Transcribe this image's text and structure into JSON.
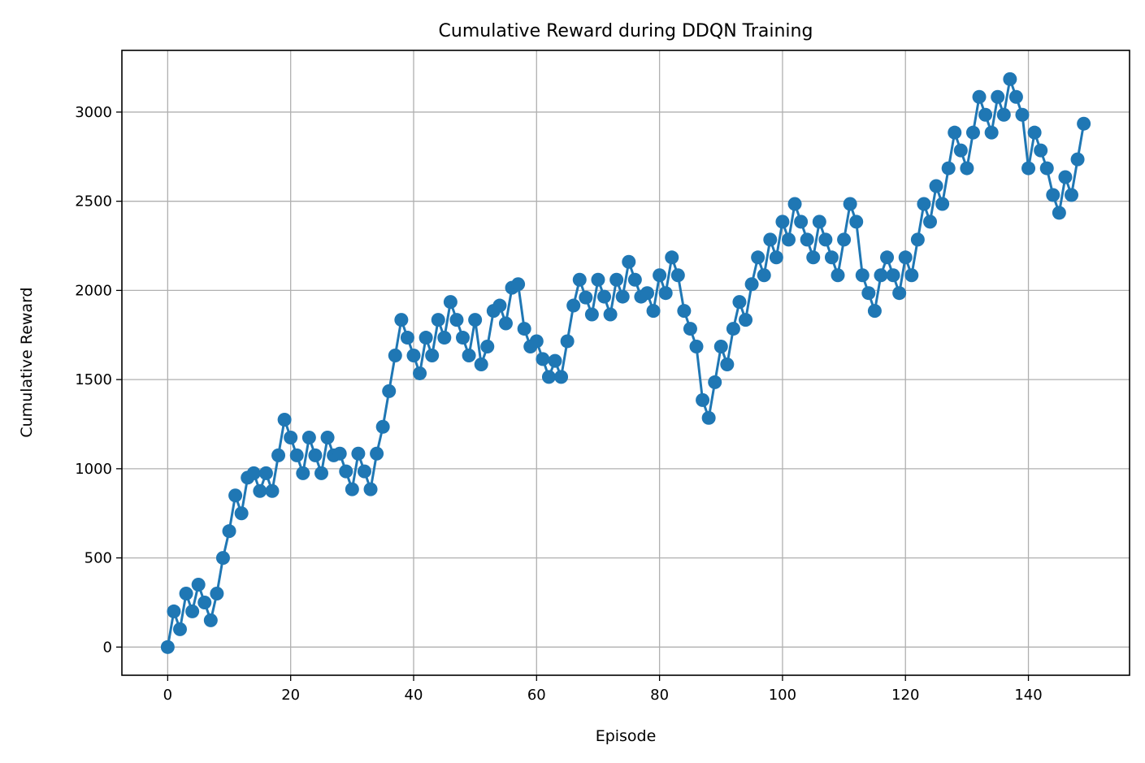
{
  "chart_data": {
    "type": "line",
    "title": "Cumulative Reward during DDQN Training",
    "xlabel": "Episode",
    "ylabel": "Cumulative Reward",
    "xlim": [
      -7.45,
      156.45
    ],
    "ylim": [
      -158,
      3346
    ],
    "xticks": [
      0,
      20,
      40,
      60,
      80,
      100,
      120,
      140
    ],
    "yticks": [
      0,
      500,
      1000,
      1500,
      2000,
      2500,
      3000
    ],
    "grid": true,
    "legend": "none",
    "marker": "circle",
    "color": "#1f77b4",
    "series": [
      {
        "values": [
          0,
          200,
          100,
          300,
          200,
          350,
          250,
          150,
          300,
          500,
          650,
          850,
          750,
          950,
          975,
          875,
          975,
          875,
          1075,
          1275,
          1175,
          1075,
          975,
          1175,
          1075,
          975,
          1175,
          1075,
          1085,
          985,
          885,
          1085,
          985,
          885,
          1085,
          1235,
          1435,
          1635,
          1835,
          1735,
          1635,
          1535,
          1735,
          1635,
          1835,
          1735,
          1935,
          1835,
          1735,
          1635,
          1835,
          1585,
          1685,
          1885,
          1915,
          1815,
          2015,
          2035,
          1785,
          1685,
          1715,
          1615,
          1515,
          1605,
          1515,
          1715,
          1915,
          2060,
          1960,
          1865,
          2060,
          1965,
          1865,
          2060,
          1965,
          2160,
          2060,
          1965,
          1985,
          1885,
          2085,
          1985,
          2185,
          2085,
          1885,
          1785,
          1685,
          1385,
          1285,
          1485,
          1685,
          1585,
          1785,
          1935,
          1835,
          2035,
          2185,
          2085,
          2285,
          2185,
          2385,
          2285,
          2485,
          2385,
          2285,
          2185,
          2385,
          2285,
          2185,
          2085,
          2285,
          2485,
          2385,
          2085,
          1985,
          1885,
          2085,
          2185,
          2085,
          1985,
          2185,
          2085,
          2285,
          2485,
          2385,
          2585,
          2485,
          2685,
          2885,
          2785,
          2685,
          2885,
          3085,
          2985,
          2885,
          3085,
          2985,
          3185,
          3085,
          2985,
          2685,
          2885,
          2785,
          2685,
          2535,
          2435,
          2635,
          2535,
          2735,
          2935
        ]
      }
    ]
  }
}
